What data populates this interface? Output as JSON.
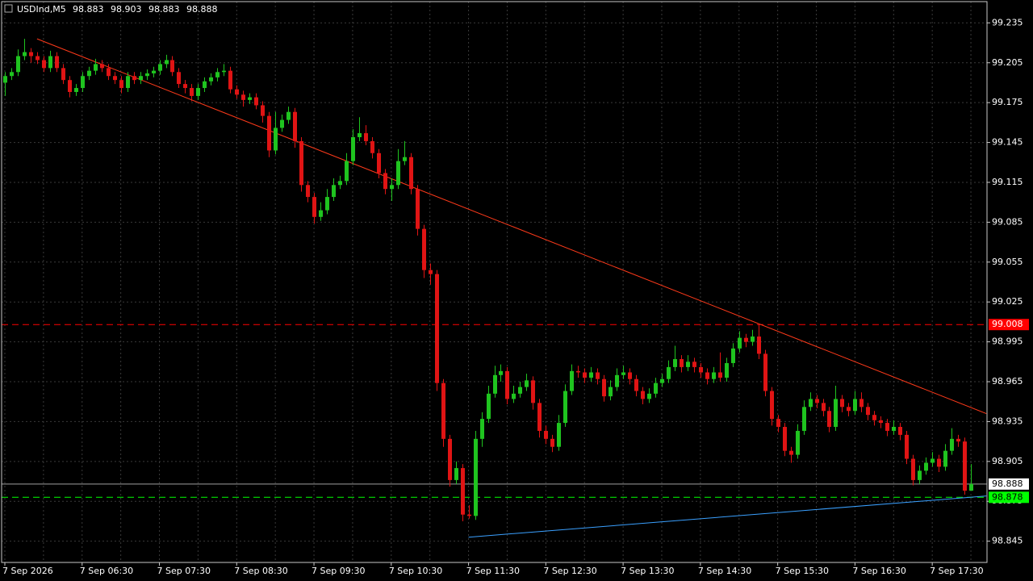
{
  "chart_data": {
    "type": "candlestick",
    "title": "USDInd,M5",
    "bull_color": "#1fc41f",
    "bear_color": "#e01414",
    "grid": true,
    "grid_color": "#3a3a3a",
    "bid_color": "#a0a0a0",
    "xlim": [
      -0.5,
      152.5
    ],
    "ylim": [
      98.829,
      99.251
    ],
    "yticks": [
      99.235,
      99.205,
      99.175,
      99.145,
      99.115,
      99.085,
      99.055,
      99.025,
      98.995,
      98.965,
      98.935,
      98.905,
      98.875,
      98.845
    ],
    "categories": [
      "7 Sep 2026",
      null,
      null,
      null,
      null,
      null,
      null,
      null,
      null,
      null,
      null,
      null,
      "7 Sep 06:30",
      null,
      null,
      null,
      null,
      null,
      null,
      null,
      null,
      null,
      null,
      null,
      "7 Sep 07:30",
      null,
      null,
      null,
      null,
      null,
      null,
      null,
      null,
      null,
      null,
      null,
      "7 Sep 08:30",
      null,
      null,
      null,
      null,
      null,
      null,
      null,
      null,
      null,
      null,
      null,
      "7 Sep 09:30",
      null,
      null,
      null,
      null,
      null,
      null,
      null,
      null,
      null,
      null,
      null,
      "7 Sep 10:30",
      null,
      null,
      null,
      null,
      null,
      null,
      null,
      null,
      null,
      null,
      null,
      "7 Sep 11:30",
      null,
      null,
      null,
      null,
      null,
      null,
      null,
      null,
      null,
      null,
      null,
      "7 Sep 12:30",
      null,
      null,
      null,
      null,
      null,
      null,
      null,
      null,
      null,
      null,
      null,
      "7 Sep 13:30",
      null,
      null,
      null,
      null,
      null,
      null,
      null,
      null,
      null,
      null,
      null,
      "7 Sep 14:30",
      null,
      null,
      null,
      null,
      null,
      null,
      null,
      null,
      null,
      null,
      null,
      "7 Sep 15:30",
      null,
      null,
      null,
      null,
      null,
      null,
      null,
      null,
      null,
      null,
      null,
      "7 Sep 16:30",
      null,
      null,
      null,
      null,
      null,
      null,
      null,
      null,
      null,
      null,
      null,
      "7 Sep 17:30",
      null,
      null,
      null,
      null,
      null,
      null
    ],
    "ohlc": [
      [
        99.19,
        99.198,
        99.18,
        99.195
      ],
      [
        99.195,
        99.201,
        99.192,
        99.198
      ],
      [
        99.198,
        99.215,
        99.195,
        99.21
      ],
      [
        99.21,
        99.223,
        99.207,
        99.213
      ],
      [
        99.213,
        99.216,
        99.205,
        99.21
      ],
      [
        99.21,
        99.213,
        99.204,
        99.207
      ],
      [
        99.207,
        99.21,
        99.198,
        99.201
      ],
      [
        99.201,
        99.214,
        99.198,
        99.21
      ],
      [
        99.21,
        99.213,
        99.198,
        99.201
      ],
      [
        99.201,
        99.204,
        99.189,
        99.192
      ],
      [
        99.192,
        99.195,
        99.179,
        99.183
      ],
      [
        99.183,
        99.189,
        99.18,
        99.186
      ],
      [
        99.186,
        99.198,
        99.183,
        99.195
      ],
      [
        99.195,
        99.202,
        99.192,
        99.199
      ],
      [
        99.199,
        99.208,
        99.196,
        99.204
      ],
      [
        99.204,
        99.207,
        99.198,
        99.201
      ],
      [
        99.201,
        99.204,
        99.192,
        99.195
      ],
      [
        99.195,
        99.198,
        99.189,
        99.192
      ],
      [
        99.192,
        99.195,
        99.182,
        99.186
      ],
      [
        99.186,
        99.198,
        99.183,
        99.195
      ],
      [
        99.195,
        99.198,
        99.189,
        99.192
      ],
      [
        99.192,
        99.198,
        99.189,
        99.195
      ],
      [
        99.195,
        99.2,
        99.192,
        99.197
      ],
      [
        99.197,
        99.202,
        99.194,
        99.199
      ],
      [
        99.199,
        99.207,
        99.196,
        99.204
      ],
      [
        99.204,
        99.211,
        99.201,
        99.207
      ],
      [
        99.207,
        99.21,
        99.195,
        99.198
      ],
      [
        99.198,
        99.201,
        99.186,
        99.189
      ],
      [
        99.189,
        99.192,
        99.182,
        99.186
      ],
      [
        99.186,
        99.189,
        99.176,
        99.18
      ],
      [
        99.18,
        99.189,
        99.177,
        99.186
      ],
      [
        99.186,
        99.194,
        99.183,
        99.191
      ],
      [
        99.191,
        99.197,
        99.188,
        99.194
      ],
      [
        99.194,
        99.201,
        99.191,
        99.198
      ],
      [
        99.198,
        99.204,
        99.195,
        99.199
      ],
      [
        99.199,
        99.202,
        99.182,
        99.185
      ],
      [
        99.185,
        99.188,
        99.178,
        99.181
      ],
      [
        99.181,
        99.184,
        99.172,
        99.177
      ],
      [
        99.177,
        99.182,
        99.174,
        99.179
      ],
      [
        99.179,
        99.182,
        99.17,
        99.173
      ],
      [
        99.173,
        99.176,
        99.16,
        99.165
      ],
      [
        99.165,
        99.168,
        99.134,
        99.139
      ],
      [
        99.139,
        99.168,
        99.136,
        99.156
      ],
      [
        99.156,
        99.166,
        99.153,
        99.162
      ],
      [
        99.162,
        99.172,
        99.159,
        99.168
      ],
      [
        99.168,
        99.171,
        99.141,
        99.146
      ],
      [
        99.146,
        99.149,
        99.108,
        99.113
      ],
      [
        99.113,
        99.116,
        99.1,
        99.104
      ],
      [
        99.104,
        99.107,
        99.084,
        99.089
      ],
      [
        99.089,
        99.1,
        99.086,
        99.094
      ],
      [
        99.094,
        99.11,
        99.091,
        99.104
      ],
      [
        99.104,
        99.118,
        99.101,
        99.113
      ],
      [
        99.113,
        99.12,
        99.11,
        99.116
      ],
      [
        99.116,
        99.137,
        99.113,
        99.131
      ],
      [
        99.131,
        99.155,
        99.128,
        99.149
      ],
      [
        99.149,
        99.164,
        99.146,
        99.152
      ],
      [
        99.152,
        99.158,
        99.143,
        99.146
      ],
      [
        99.146,
        99.149,
        99.133,
        99.137
      ],
      [
        99.137,
        99.14,
        99.118,
        99.122
      ],
      [
        99.122,
        99.125,
        99.106,
        99.11
      ],
      [
        99.11,
        99.118,
        99.101,
        99.113
      ],
      [
        99.113,
        99.14,
        99.11,
        99.131
      ],
      [
        99.131,
        99.146,
        99.128,
        99.134
      ],
      [
        99.134,
        99.137,
        99.106,
        99.11
      ],
      [
        99.11,
        99.113,
        99.075,
        99.08
      ],
      [
        99.08,
        99.083,
        99.043,
        99.049
      ],
      [
        99.049,
        99.054,
        99.038,
        99.046
      ],
      [
        99.046,
        99.049,
        98.958,
        98.964
      ],
      [
        98.964,
        98.967,
        98.916,
        98.922
      ],
      [
        98.922,
        98.925,
        98.886,
        98.891
      ],
      [
        98.891,
        98.905,
        98.888,
        98.9
      ],
      [
        98.9,
        98.903,
        98.86,
        98.865
      ],
      [
        98.865,
        98.872,
        98.862,
        98.864
      ],
      [
        98.864,
        98.928,
        98.861,
        98.922
      ],
      [
        98.922,
        98.942,
        98.916,
        98.937
      ],
      [
        98.937,
        98.962,
        98.934,
        98.956
      ],
      [
        98.956,
        98.977,
        98.953,
        98.97
      ],
      [
        98.97,
        98.978,
        98.965,
        98.973
      ],
      [
        98.973,
        98.976,
        98.948,
        98.952
      ],
      [
        98.952,
        98.962,
        98.949,
        98.956
      ],
      [
        98.956,
        98.965,
        98.953,
        98.961
      ],
      [
        98.961,
        98.971,
        98.958,
        98.966
      ],
      [
        98.966,
        98.969,
        98.944,
        98.949
      ],
      [
        98.949,
        98.952,
        98.923,
        98.928
      ],
      [
        98.928,
        98.932,
        98.918,
        98.922
      ],
      [
        98.922,
        98.925,
        98.912,
        98.916
      ],
      [
        98.916,
        98.94,
        98.913,
        98.934
      ],
      [
        98.934,
        98.963,
        98.931,
        98.958
      ],
      [
        98.958,
        98.978,
        98.955,
        98.973
      ],
      [
        98.973,
        98.977,
        98.968,
        98.972
      ],
      [
        98.972,
        98.975,
        98.964,
        98.968
      ],
      [
        98.968,
        98.976,
        98.965,
        98.972
      ],
      [
        98.972,
        98.975,
        98.963,
        98.967
      ],
      [
        98.967,
        98.97,
        98.95,
        98.954
      ],
      [
        98.954,
        98.966,
        98.951,
        98.961
      ],
      [
        98.961,
        98.975,
        98.958,
        98.97
      ],
      [
        98.97,
        98.977,
        98.967,
        98.972
      ],
      [
        98.972,
        98.975,
        98.963,
        98.967
      ],
      [
        98.967,
        98.97,
        98.954,
        98.958
      ],
      [
        98.958,
        98.961,
        98.948,
        98.952
      ],
      [
        98.952,
        98.96,
        98.949,
        98.956
      ],
      [
        98.956,
        98.968,
        98.953,
        98.964
      ],
      [
        98.964,
        98.971,
        98.961,
        98.967
      ],
      [
        98.967,
        98.981,
        98.964,
        98.976
      ],
      [
        98.976,
        98.992,
        98.973,
        98.982
      ],
      [
        98.982,
        98.985,
        98.972,
        98.976
      ],
      [
        98.976,
        98.985,
        98.973,
        98.98
      ],
      [
        98.98,
        98.983,
        98.972,
        98.976
      ],
      [
        98.976,
        98.979,
        98.968,
        98.972
      ],
      [
        98.972,
        98.975,
        98.963,
        98.967
      ],
      [
        98.967,
        98.976,
        98.964,
        98.972
      ],
      [
        98.972,
        98.987,
        98.965,
        98.968
      ],
      [
        98.968,
        98.983,
        98.965,
        98.979
      ],
      [
        98.979,
        98.994,
        98.976,
        98.99
      ],
      [
        98.99,
        99.003,
        98.987,
        98.998
      ],
      [
        98.998,
        99.001,
        98.991,
        98.995
      ],
      [
        98.995,
        99.004,
        98.992,
        98.999
      ],
      [
        98.999,
        99.008,
        98.982,
        98.986
      ],
      [
        98.986,
        98.989,
        98.954,
        98.958
      ],
      [
        98.958,
        98.961,
        98.932,
        98.937
      ],
      [
        98.937,
        98.94,
        98.927,
        98.931
      ],
      [
        98.931,
        98.934,
        98.909,
        98.913
      ],
      [
        98.913,
        98.916,
        98.904,
        98.91
      ],
      [
        98.91,
        98.933,
        98.907,
        98.928
      ],
      [
        98.928,
        98.951,
        98.925,
        98.946
      ],
      [
        98.946,
        98.957,
        98.943,
        98.952
      ],
      [
        98.952,
        98.955,
        98.945,
        98.949
      ],
      [
        98.949,
        98.952,
        98.939,
        98.943
      ],
      [
        98.943,
        98.946,
        98.927,
        98.931
      ],
      [
        98.931,
        98.962,
        98.928,
        98.952
      ],
      [
        98.952,
        98.955,
        98.942,
        98.946
      ],
      [
        98.946,
        98.949,
        98.939,
        98.943
      ],
      [
        98.943,
        98.958,
        98.94,
        98.952
      ],
      [
        98.952,
        98.957,
        98.942,
        98.946
      ],
      [
        98.946,
        98.949,
        98.936,
        98.94
      ],
      [
        98.94,
        98.943,
        98.932,
        98.936
      ],
      [
        98.936,
        98.939,
        98.93,
        98.934
      ],
      [
        98.934,
        98.937,
        98.924,
        98.928
      ],
      [
        98.928,
        98.936,
        98.925,
        98.931
      ],
      [
        98.931,
        98.934,
        98.921,
        98.925
      ],
      [
        98.925,
        98.928,
        98.903,
        98.907
      ],
      [
        98.907,
        98.91,
        98.887,
        98.891
      ],
      [
        98.891,
        98.902,
        98.888,
        98.898
      ],
      [
        98.898,
        98.908,
        98.895,
        98.904
      ],
      [
        98.904,
        98.912,
        98.901,
        98.907
      ],
      [
        98.907,
        98.91,
        98.897,
        98.901
      ],
      [
        98.901,
        98.918,
        98.898,
        98.913
      ],
      [
        98.913,
        98.93,
        98.91,
        98.922
      ],
      [
        98.922,
        98.925,
        98.916,
        98.92
      ],
      [
        98.92,
        98.923,
        98.88,
        98.883
      ],
      [
        98.883,
        98.903,
        98.883,
        98.888
      ]
    ],
    "hlines": [
      {
        "value": 99.008,
        "color": "#ff0000",
        "text_color": "#ffffff"
      },
      {
        "value": 98.878,
        "color": "#00ff00",
        "text_color": "#000000"
      }
    ],
    "trendlines": [
      {
        "color": "#ff3a1a",
        "from": [
          5,
          99.223
        ],
        "to": [
          152.4,
          98.941
        ]
      },
      {
        "color": "#3aa0ff",
        "from": [
          72,
          98.848
        ],
        "to": [
          152.4,
          98.879
        ]
      }
    ]
  }
}
